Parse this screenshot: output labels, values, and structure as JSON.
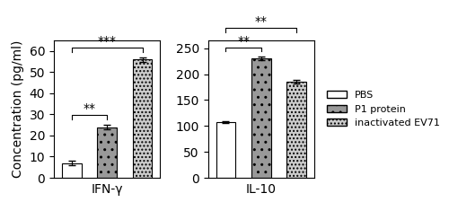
{
  "chart_data": [
    {
      "type": "bar",
      "x_label": "IFN-γ",
      "y_label": "Concentration (pg/ml)",
      "series": [
        {
          "name": "PBS",
          "color": "white",
          "values": [
            7
          ],
          "errors": [
            1.0
          ]
        },
        {
          "name": "P1 protein",
          "color": "#999999",
          "values": [
            24
          ],
          "errors": [
            1.0
          ]
        },
        {
          "name": "inactivated EV71",
          "color": "#cccccc",
          "values": [
            56
          ],
          "errors": [
            1.0
          ]
        }
      ],
      "ylim": [
        0,
        65
      ],
      "yticks": [
        0,
        10,
        20,
        30,
        40,
        50,
        60
      ],
      "tick_labels": "y",
      "annotations": [
        {
          "text": "**",
          "from": "PBS",
          "to": "P1 protein"
        },
        {
          "text": "***",
          "from": "PBS",
          "to": "inactivated EV71"
        }
      ]
    },
    {
      "type": "bar",
      "x_label": "IL-10",
      "series": [
        {
          "name": "PBS",
          "color": "white",
          "values": [
            107
          ],
          "errors": [
            2.0
          ]
        },
        {
          "name": "P1 protein",
          "color": "#999999",
          "values": [
            230
          ],
          "errors": [
            3.0
          ]
        },
        {
          "name": "inactivated EV71",
          "color": "#cccccc",
          "values": [
            185
          ],
          "errors": [
            3.0
          ]
        }
      ],
      "ylim": [
        0,
        265
      ],
      "yticks": [
        0,
        50,
        100,
        150,
        200,
        250
      ],
      "tick_labels": "y",
      "legend": "right",
      "annotations": [
        {
          "text": "**",
          "from": "PBS",
          "to": "P1 protein"
        },
        {
          "text": "**",
          "from": "PBS",
          "to": "inactivated EV71"
        }
      ]
    }
  ]
}
